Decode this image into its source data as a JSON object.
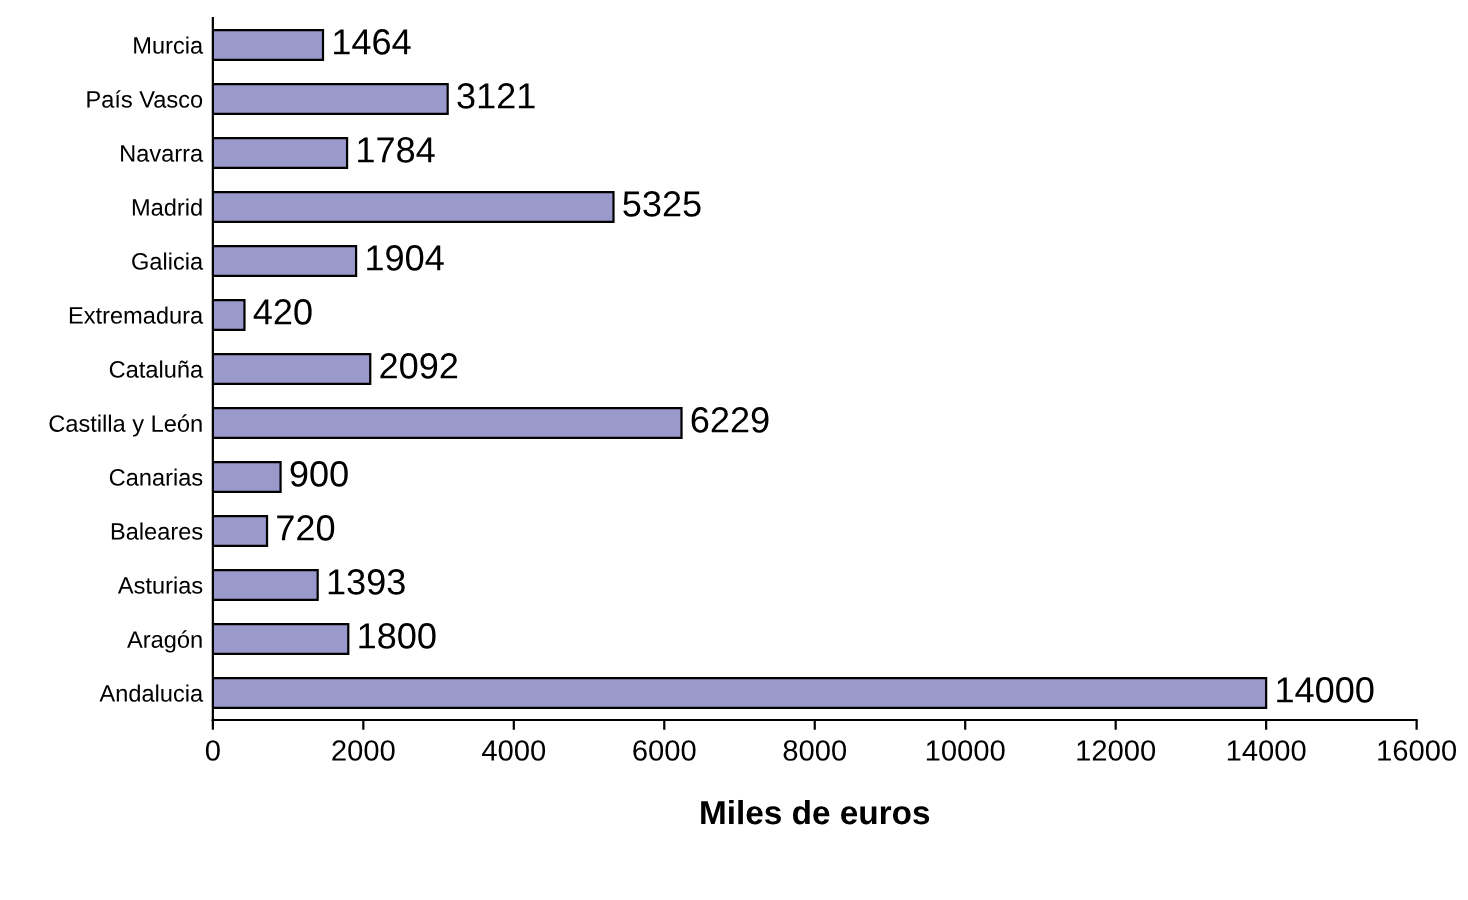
{
  "chart_data": {
    "type": "bar",
    "orientation": "horizontal",
    "xlabel": "Miles de euros",
    "categories": [
      "Murcia",
      "País Vasco",
      "Navarra",
      "Madrid",
      "Galicia",
      "Extremadura",
      "Cataluña",
      "Castilla y León",
      "Canarias",
      "Baleares",
      "Asturias",
      "Aragón",
      "Andalucia"
    ],
    "values": [
      1464,
      3121,
      1784,
      5325,
      1904,
      420,
      2092,
      6229,
      900,
      720,
      1393,
      1800,
      14000
    ],
    "color": "#9999cc",
    "data_labels": true,
    "xlim": [
      0,
      16000
    ],
    "xticks": [
      0,
      2000,
      4000,
      6000,
      8000,
      10000,
      12000,
      14000,
      16000
    ],
    "grid": false,
    "legend": false
  }
}
